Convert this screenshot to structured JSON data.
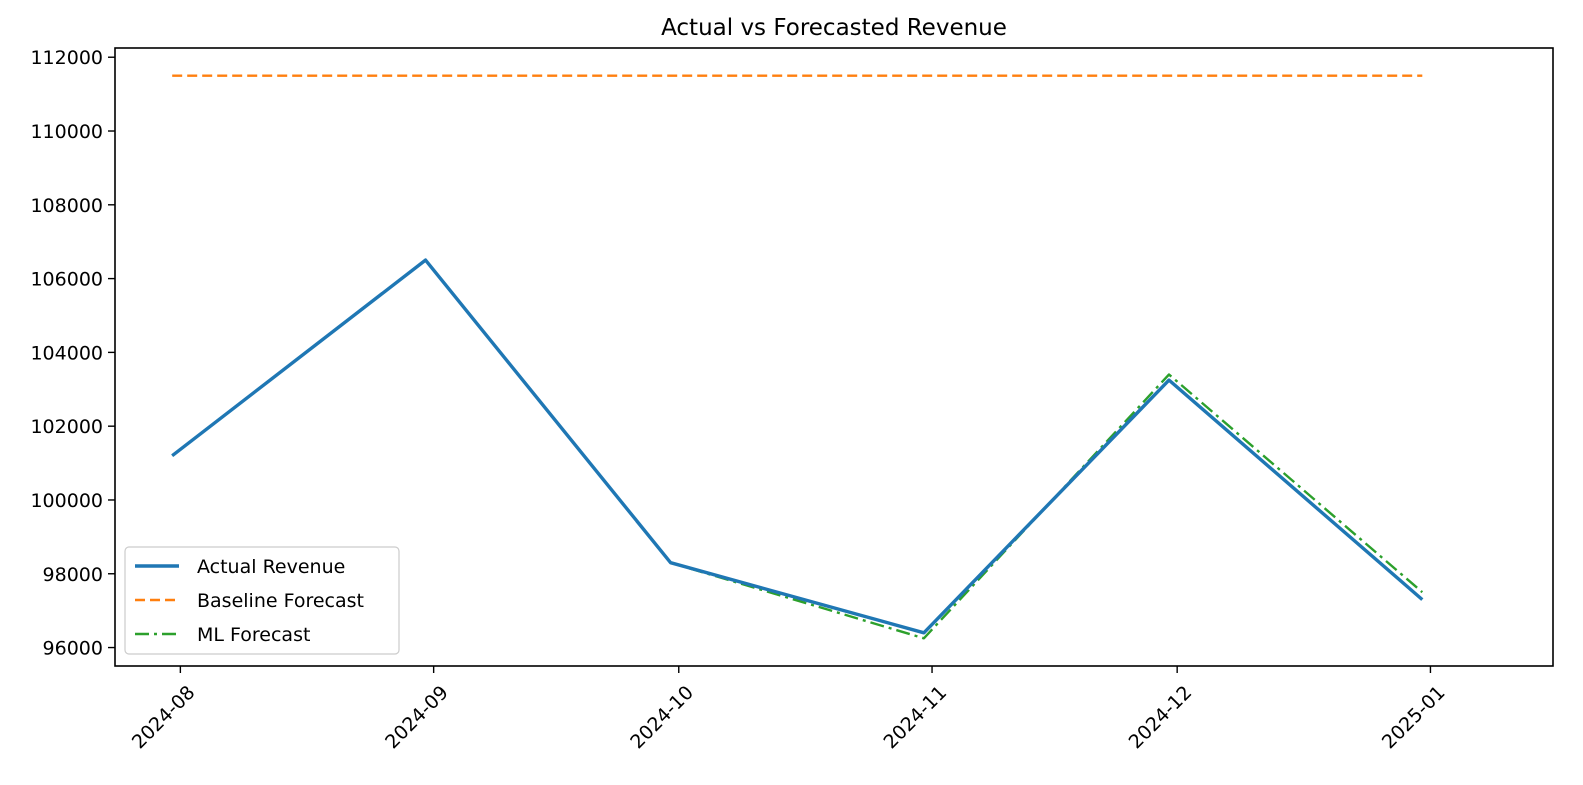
{
  "chart_data": {
    "type": "line",
    "title": "Actual vs Forecasted Revenue",
    "xlabel": "",
    "ylabel": "",
    "x": [
      "2024-07-31",
      "2024-08-31",
      "2024-09-30",
      "2024-10-31",
      "2024-11-30",
      "2024-12-31"
    ],
    "x_ticks": [
      "2024-08-01",
      "2024-09-01",
      "2024-10-01",
      "2024-11-01",
      "2024-12-01",
      "2025-01-01"
    ],
    "x_tick_labels": [
      "2024-08",
      "2024-09",
      "2024-10",
      "2024-11",
      "2024-12",
      "2025-01"
    ],
    "xlim": [
      "2024-07-24",
      "2025-01-16"
    ],
    "ylim": [
      95500,
      112250
    ],
    "y_ticks": [
      96000,
      98000,
      100000,
      102000,
      104000,
      106000,
      108000,
      110000,
      112000
    ],
    "grid": false,
    "legend_position": "lower-left",
    "series": [
      {
        "name": "Actual Revenue",
        "color": "#1f77b4",
        "style": "solid",
        "values": [
          101200,
          106500,
          98300,
          96400,
          103250,
          97300
        ]
      },
      {
        "name": "Baseline Forecast",
        "color": "#ff7f0e",
        "style": "dashed",
        "values": [
          111500,
          111500,
          111500,
          111500,
          111500,
          111500
        ]
      },
      {
        "name": "ML Forecast",
        "color": "#2ca02c",
        "style": "dashdot",
        "values": [
          101200,
          106500,
          98300,
          96250,
          103400,
          97500
        ]
      }
    ]
  }
}
